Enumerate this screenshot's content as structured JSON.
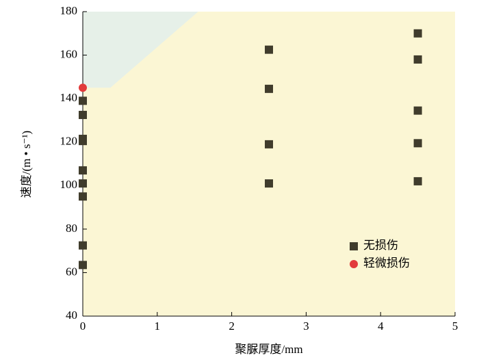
{
  "chart_data": {
    "type": "scatter",
    "xlabel": "聚脲厚度/mm",
    "ylabel": "速度/(m • s⁻¹)",
    "xlim": [
      0,
      5
    ],
    "xticks": [
      0,
      1,
      2,
      3,
      4,
      5
    ],
    "ylim": [
      40,
      180
    ],
    "yticks": [
      40,
      60,
      80,
      100,
      120,
      140,
      160,
      180
    ],
    "background": "#fbf6d4",
    "regions": [
      {
        "color": "#e6f0e8",
        "x": [
          0,
          0,
          0.37,
          1.55
        ],
        "y": [
          180,
          145,
          145,
          180
        ]
      }
    ],
    "legend": "lower right",
    "series": [
      {
        "name": "无损伤",
        "color": "#403c2c",
        "marker": "square",
        "x": [
          0,
          0,
          0,
          0,
          0,
          0,
          0,
          0,
          0,
          2.5,
          2.5,
          2.5,
          2.5,
          4.5,
          4.5,
          4.5,
          4.5,
          4.5
        ],
        "values": [
          139,
          132.5,
          121.5,
          120.5,
          107,
          101,
          95,
          72.5,
          63.5,
          162.5,
          144.5,
          119,
          101,
          170,
          158,
          134.5,
          119.5,
          102
        ]
      },
      {
        "name": "轻微损伤",
        "color": "#e23b3b",
        "marker": "circle",
        "x": [
          0
        ],
        "values": [
          145
        ]
      }
    ]
  }
}
